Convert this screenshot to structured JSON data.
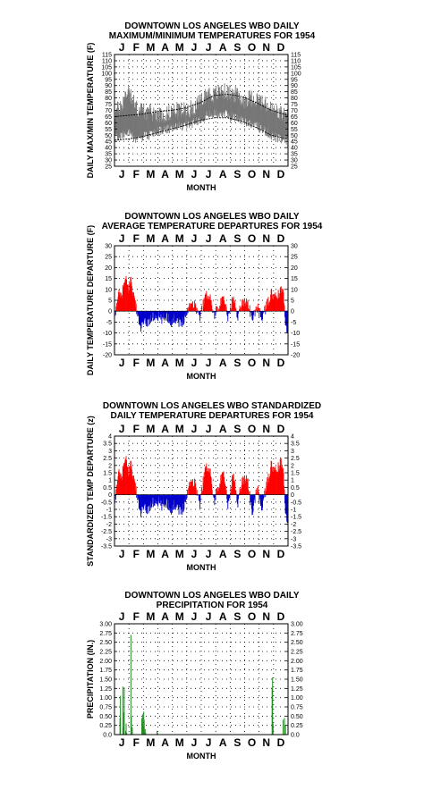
{
  "months": [
    "J",
    "F",
    "M",
    "A",
    "M",
    "J",
    "J",
    "A",
    "S",
    "O",
    "N",
    "D"
  ],
  "chart_data": [
    {
      "type": "line",
      "title_line1": "DOWNTOWN LOS ANGELES WBO DAILY",
      "title_line2": "MAXIMUM/MINIMUM TEMPERATURES FOR 1954",
      "xlabel": "MONTH",
      "ylabel": "DAILY MAX/MIN TEMPERATURE (F)",
      "ylim": [
        25,
        115
      ],
      "yticks": [
        25,
        30,
        35,
        40,
        45,
        50,
        55,
        60,
        65,
        70,
        75,
        80,
        85,
        90,
        95,
        100,
        105,
        110,
        115
      ],
      "series": [
        {
          "name": "",
          "kind": "daily_max_anchors",
          "x": [
            1,
            15,
            30,
            45,
            60,
            75,
            90,
            105,
            120,
            135,
            150,
            165,
            180,
            195,
            210,
            225,
            240,
            255,
            270,
            285,
            300,
            315,
            330,
            345,
            360,
            365
          ],
          "values": [
            68,
            74,
            88,
            72,
            70,
            68,
            67,
            66,
            69,
            70,
            70,
            72,
            76,
            84,
            82,
            86,
            84,
            83,
            78,
            80,
            79,
            75,
            71,
            68,
            66,
            64
          ]
        },
        {
          "name": "",
          "kind": "daily_min_anchors",
          "x": [
            1,
            15,
            30,
            45,
            60,
            75,
            90,
            105,
            120,
            135,
            150,
            165,
            180,
            195,
            210,
            225,
            240,
            255,
            270,
            285,
            300,
            315,
            330,
            345,
            360,
            365
          ],
          "values": [
            48,
            50,
            52,
            47,
            49,
            50,
            53,
            54,
            55,
            57,
            58,
            60,
            63,
            66,
            67,
            68,
            66,
            64,
            62,
            60,
            57,
            54,
            50,
            47,
            46,
            44
          ]
        },
        {
          "name": "",
          "kind": "normal_max",
          "x": [
            1,
            30,
            60,
            90,
            120,
            150,
            180,
            210,
            240,
            270,
            300,
            330,
            365
          ],
          "values": [
            65,
            66,
            67,
            69,
            70,
            72,
            76,
            82,
            83,
            81,
            76,
            70,
            66
          ]
        },
        {
          "name": "",
          "kind": "normal_min",
          "x": [
            1,
            30,
            60,
            90,
            120,
            150,
            180,
            210,
            240,
            270,
            300,
            330,
            365
          ],
          "values": [
            46,
            47,
            49,
            52,
            55,
            58,
            62,
            64,
            64,
            61,
            56,
            50,
            47
          ]
        }
      ]
    },
    {
      "type": "bar",
      "title_line1": "DOWNTOWN LOS ANGELES WBO DAILY",
      "title_line2": "AVERAGE TEMPERATURE DEPARTURES FOR 1954",
      "xlabel": "MONTH",
      "ylabel": "DAILY TEMPERATURE DEPARTURE (F)",
      "ylim": [
        -20,
        30
      ],
      "yticks": [
        -20,
        -15,
        -10,
        -5,
        0,
        5,
        10,
        15,
        20,
        25,
        30
      ],
      "series": [
        {
          "name": "",
          "kind": "departure_anchors",
          "x": [
            1,
            8,
            15,
            20,
            25,
            30,
            35,
            40,
            45,
            55,
            60,
            70,
            80,
            90,
            100,
            110,
            120,
            130,
            140,
            150,
            160,
            170,
            180,
            190,
            200,
            210,
            220,
            230,
            240,
            250,
            260,
            270,
            280,
            290,
            300,
            310,
            320,
            330,
            340,
            350,
            355,
            360,
            365
          ],
          "values": [
            -4,
            8,
            6,
            12,
            14,
            10,
            15,
            8,
            3,
            -8,
            -6,
            -5,
            -3,
            -2,
            -4,
            -2,
            -5,
            -3,
            -6,
            -2,
            4,
            3,
            -3,
            6,
            8,
            -2,
            3,
            5,
            -3,
            6,
            -2,
            4,
            5,
            -4,
            2,
            -3,
            2,
            8,
            6,
            9,
            10,
            -6,
            -8
          ]
        }
      ]
    },
    {
      "type": "bar",
      "title_line1": "DOWNTOWN LOS ANGELES WBO STANDARDIZED",
      "title_line2": "DAILY TEMPERATURE DEPARTURES FOR 1954",
      "xlabel": "MONTH",
      "ylabel": "STANDARDIZED TEMP DEPARTURE (z)",
      "ylim": [
        -3.5,
        4.0
      ],
      "yticks": [
        -3.5,
        -3.0,
        -2.5,
        -2.0,
        -1.5,
        -1.0,
        -0.5,
        0.0,
        0.5,
        1.0,
        1.5,
        2.0,
        2.5,
        3.0,
        3.5,
        4.0
      ],
      "series": [
        {
          "name": "",
          "kind": "z_anchors",
          "x": [
            1,
            8,
            15,
            20,
            25,
            30,
            35,
            40,
            45,
            55,
            60,
            70,
            80,
            90,
            100,
            110,
            120,
            130,
            140,
            150,
            160,
            170,
            180,
            190,
            200,
            210,
            220,
            230,
            240,
            250,
            260,
            270,
            280,
            290,
            300,
            310,
            320,
            330,
            340,
            350,
            355,
            360,
            365
          ],
          "values": [
            -0.8,
            1.5,
            1.0,
            2.0,
            2.3,
            1.5,
            2.2,
            1.2,
            0.5,
            -1.3,
            -1.0,
            -1.0,
            -0.6,
            -0.4,
            -0.8,
            -0.5,
            -1.0,
            -0.6,
            -1.2,
            -0.4,
            1.0,
            0.8,
            -0.7,
            1.6,
            2.0,
            -0.5,
            0.8,
            1.3,
            -0.8,
            1.4,
            -0.5,
            1.0,
            1.2,
            -1.4,
            0.5,
            -0.9,
            0.5,
            2.0,
            1.5,
            2.2,
            1.8,
            -1.2,
            -1.6
          ]
        }
      ]
    },
    {
      "type": "bar",
      "title_line1": "DOWNTOWN LOS ANGELES WBO DAILY",
      "title_line2": "PRECIPITATION FOR 1954",
      "xlabel": "MONTH",
      "ylabel": "PRECIPITATION (IN.)",
      "ylim": [
        0,
        3.0
      ],
      "yticks": [
        "0.0",
        "0.25",
        "0.50",
        "0.75",
        "1.00",
        "1.25",
        "1.50",
        "1.75",
        "2.00",
        "2.25",
        "2.50",
        "2.75",
        "3.00"
      ],
      "series": [
        {
          "name": "",
          "kind": "daily_precip",
          "x": [
            12,
            13,
            18,
            19,
            20,
            21,
            24,
            25,
            26,
            35,
            36,
            38,
            58,
            59,
            60,
            61,
            62,
            63,
            64,
            65,
            66,
            90,
            91,
            332,
            333,
            334,
            355,
            358,
            360
          ],
          "values": [
            0.45,
            1.05,
            1.3,
            0.2,
            0.6,
            1.28,
            0.1,
            0.3,
            0.05,
            2.7,
            0.5,
            0.2,
            0.45,
            0.3,
            0.55,
            0.2,
            0.62,
            0.4,
            0.1,
            0.15,
            0.05,
            0.1,
            0.05,
            1.25,
            1.55,
            0.3,
            0.4,
            0.45,
            0.25
          ]
        }
      ]
    }
  ]
}
